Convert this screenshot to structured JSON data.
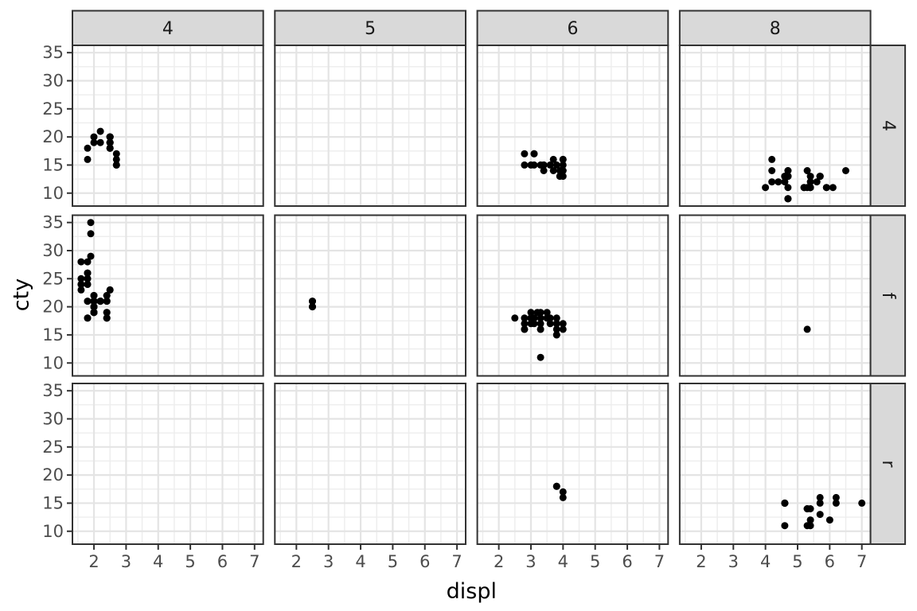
{
  "chart_data": {
    "type": "scatter",
    "title": "",
    "xlabel": "displ",
    "ylabel": "cty",
    "x_ticks": [
      2,
      3,
      4,
      5,
      6,
      7
    ],
    "y_ticks": [
      10,
      15,
      20,
      25,
      30,
      35
    ],
    "x_domain": [
      1.33,
      7.27
    ],
    "y_domain": [
      7.7,
      36.3
    ],
    "grid": "major and minor gridlines, light gray on white",
    "legend": "none",
    "facet_cols": [
      "4",
      "5",
      "6",
      "8"
    ],
    "facet_rows": [
      "4",
      "f",
      "r"
    ],
    "point_style": {
      "color": "#000000",
      "radius_px": 4.5
    },
    "facets": [
      {
        "row": "4",
        "col": "4",
        "points": [
          [
            1.8,
            18
          ],
          [
            1.8,
            16
          ],
          [
            2.0,
            20
          ],
          [
            2.0,
            19
          ],
          [
            2.2,
            21
          ],
          [
            2.2,
            19
          ],
          [
            2.5,
            18
          ],
          [
            2.5,
            18
          ],
          [
            2.5,
            18
          ],
          [
            2.5,
            19
          ],
          [
            2.5,
            19
          ],
          [
            2.5,
            19
          ],
          [
            2.5,
            19
          ],
          [
            2.5,
            20
          ],
          [
            2.5,
            20
          ],
          [
            2.5,
            20
          ],
          [
            2.5,
            20
          ],
          [
            2.5,
            20
          ],
          [
            2.7,
            15
          ],
          [
            2.7,
            15
          ],
          [
            2.7,
            16
          ],
          [
            2.7,
            17
          ]
        ]
      },
      {
        "row": "4",
        "col": "5",
        "points": []
      },
      {
        "row": "4",
        "col": "6",
        "points": [
          [
            2.8,
            17
          ],
          [
            3.1,
            17
          ],
          [
            3.1,
            17
          ],
          [
            2.8,
            15
          ],
          [
            3.0,
            15
          ],
          [
            3.1,
            15
          ],
          [
            3.3,
            15
          ],
          [
            3.4,
            15
          ],
          [
            3.4,
            15
          ],
          [
            3.4,
            14
          ],
          [
            3.6,
            15
          ],
          [
            3.7,
            16
          ],
          [
            3.7,
            14
          ],
          [
            3.8,
            15
          ],
          [
            3.9,
            14
          ],
          [
            3.9,
            13
          ],
          [
            4.0,
            16
          ],
          [
            4.0,
            16
          ],
          [
            4.0,
            15
          ],
          [
            4.0,
            14
          ],
          [
            4.0,
            14
          ],
          [
            4.0,
            13
          ]
        ]
      },
      {
        "row": "4",
        "col": "8",
        "points": [
          [
            4.0,
            11
          ],
          [
            4.2,
            16
          ],
          [
            4.2,
            14
          ],
          [
            4.2,
            12
          ],
          [
            4.4,
            12
          ],
          [
            4.6,
            12
          ],
          [
            4.6,
            13
          ],
          [
            4.6,
            13
          ],
          [
            4.6,
            13
          ],
          [
            4.7,
            14
          ],
          [
            4.7,
            14
          ],
          [
            4.7,
            13
          ],
          [
            4.7,
            13
          ],
          [
            4.7,
            13
          ],
          [
            4.7,
            13
          ],
          [
            4.7,
            11
          ],
          [
            4.7,
            9
          ],
          [
            4.7,
            9
          ],
          [
            4.7,
            9
          ],
          [
            5.2,
            11
          ],
          [
            5.2,
            11
          ],
          [
            5.3,
            14
          ],
          [
            5.3,
            11
          ],
          [
            5.4,
            13
          ],
          [
            5.4,
            11
          ],
          [
            5.4,
            11
          ],
          [
            5.4,
            12
          ],
          [
            5.6,
            12
          ],
          [
            5.7,
            13
          ],
          [
            5.7,
            13
          ],
          [
            5.7,
            13
          ],
          [
            5.7,
            13
          ],
          [
            5.9,
            11
          ],
          [
            5.9,
            11
          ],
          [
            6.1,
            11
          ],
          [
            6.5,
            14
          ]
        ]
      },
      {
        "row": "f",
        "col": "4",
        "points": [
          [
            1.6,
            28
          ],
          [
            1.6,
            25
          ],
          [
            1.6,
            24
          ],
          [
            1.6,
            24
          ],
          [
            1.6,
            23
          ],
          [
            1.8,
            28
          ],
          [
            1.8,
            26
          ],
          [
            1.8,
            26
          ],
          [
            1.8,
            26
          ],
          [
            1.8,
            25
          ],
          [
            1.8,
            25
          ],
          [
            1.8,
            24
          ],
          [
            1.8,
            24
          ],
          [
            1.8,
            21
          ],
          [
            1.8,
            21
          ],
          [
            1.8,
            18
          ],
          [
            1.8,
            18
          ],
          [
            1.9,
            35
          ],
          [
            1.9,
            33
          ],
          [
            1.9,
            29
          ],
          [
            2.0,
            22
          ],
          [
            2.0,
            22
          ],
          [
            2.0,
            22
          ],
          [
            2.0,
            21
          ],
          [
            2.0,
            21
          ],
          [
            2.0,
            21
          ],
          [
            2.0,
            21
          ],
          [
            2.0,
            21
          ],
          [
            2.0,
            21
          ],
          [
            2.0,
            21
          ],
          [
            2.0,
            21
          ],
          [
            2.0,
            20
          ],
          [
            2.0,
            20
          ],
          [
            2.0,
            20
          ],
          [
            2.0,
            20
          ],
          [
            2.0,
            19
          ],
          [
            2.0,
            19
          ],
          [
            2.0,
            19
          ],
          [
            2.0,
            19
          ],
          [
            2.0,
            19
          ],
          [
            2.0,
            19
          ],
          [
            2.2,
            21
          ],
          [
            2.2,
            21
          ],
          [
            2.2,
            21
          ],
          [
            2.2,
            21
          ],
          [
            2.4,
            22
          ],
          [
            2.4,
            22
          ],
          [
            2.4,
            21
          ],
          [
            2.4,
            21
          ],
          [
            2.4,
            21
          ],
          [
            2.4,
            19
          ],
          [
            2.4,
            19
          ],
          [
            2.4,
            18
          ],
          [
            2.4,
            18
          ],
          [
            2.4,
            18
          ],
          [
            2.5,
            23
          ],
          [
            2.5,
            23
          ]
        ]
      },
      {
        "row": "f",
        "col": "5",
        "points": [
          [
            2.5,
            21
          ],
          [
            2.5,
            21
          ],
          [
            2.5,
            20
          ],
          [
            2.5,
            20
          ]
        ]
      },
      {
        "row": "f",
        "col": "6",
        "points": [
          [
            2.5,
            18
          ],
          [
            2.8,
            18
          ],
          [
            2.8,
            17
          ],
          [
            2.8,
            16
          ],
          [
            2.8,
            16
          ],
          [
            3.0,
            19
          ],
          [
            3.0,
            18
          ],
          [
            3.0,
            18
          ],
          [
            3.0,
            18
          ],
          [
            3.0,
            17
          ],
          [
            3.1,
            18
          ],
          [
            3.1,
            18
          ],
          [
            3.1,
            17
          ],
          [
            3.2,
            19
          ],
          [
            3.3,
            19
          ],
          [
            3.3,
            18
          ],
          [
            3.3,
            17
          ],
          [
            3.3,
            16
          ],
          [
            3.3,
            16
          ],
          [
            3.3,
            11
          ],
          [
            3.5,
            19
          ],
          [
            3.5,
            18
          ],
          [
            3.5,
            18
          ],
          [
            3.6,
            18
          ],
          [
            3.6,
            17
          ],
          [
            3.8,
            18
          ],
          [
            3.8,
            17
          ],
          [
            3.8,
            17
          ],
          [
            3.8,
            16
          ],
          [
            3.8,
            15
          ],
          [
            3.8,
            15
          ],
          [
            4.0,
            17
          ],
          [
            4.0,
            16
          ]
        ]
      },
      {
        "row": "f",
        "col": "8",
        "points": [
          [
            5.3,
            16
          ]
        ]
      },
      {
        "row": "r",
        "col": "4",
        "points": []
      },
      {
        "row": "r",
        "col": "5",
        "points": []
      },
      {
        "row": "r",
        "col": "6",
        "points": [
          [
            3.8,
            18
          ],
          [
            3.8,
            18
          ],
          [
            4.0,
            17
          ],
          [
            4.0,
            16
          ]
        ]
      },
      {
        "row": "r",
        "col": "8",
        "points": [
          [
            4.6,
            15
          ],
          [
            4.6,
            15
          ],
          [
            4.6,
            15
          ],
          [
            4.6,
            15
          ],
          [
            4.6,
            11
          ],
          [
            5.3,
            14
          ],
          [
            5.3,
            14
          ],
          [
            5.3,
            11
          ],
          [
            5.4,
            14
          ],
          [
            5.4,
            12
          ],
          [
            5.4,
            11
          ],
          [
            5.7,
            16
          ],
          [
            5.7,
            15
          ],
          [
            5.7,
            13
          ],
          [
            6.0,
            12
          ],
          [
            6.2,
            16
          ],
          [
            6.2,
            15
          ],
          [
            7.0,
            15
          ]
        ]
      }
    ]
  },
  "style": {
    "background": "#ffffff",
    "panel_bg": "#ffffff",
    "grid_major": "#e4e4e4",
    "grid_minor": "#ededed",
    "panel_border": "#333333",
    "tick_mark": "#333333",
    "strip_bg": "#d9d9d9",
    "strip_border": "#333333",
    "strip_text": "#1a1a1a",
    "axis_text": "#4d4d4d",
    "axis_title": "#000000",
    "point_color": "#000000"
  }
}
